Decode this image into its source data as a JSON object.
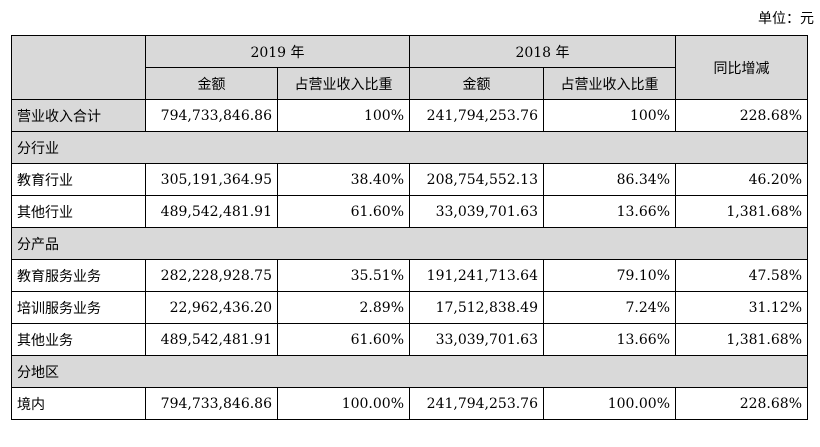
{
  "unit_label": "单位：元",
  "header": {
    "year1": "2019 年",
    "year2": "2018 年",
    "yoy": "同比增减",
    "amount": "金额",
    "share": "占营业收入比重"
  },
  "total": {
    "label": "营业收入合计",
    "a1": "794,733,846.86",
    "s1": "100%",
    "a2": "241,794,253.76",
    "s2": "100%",
    "yoy": "228.68%"
  },
  "sections": [
    {
      "title": "分行业",
      "rows": [
        {
          "label": "教育行业",
          "a1": "305,191,364.95",
          "s1": "38.40%",
          "a2": "208,754,552.13",
          "s2": "86.34%",
          "yoy": "46.20%"
        },
        {
          "label": "其他行业",
          "a1": "489,542,481.91",
          "s1": "61.60%",
          "a2": "33,039,701.63",
          "s2": "13.66%",
          "yoy": "1,381.68%"
        }
      ]
    },
    {
      "title": "分产品",
      "rows": [
        {
          "label": "教育服务业务",
          "a1": "282,228,928.75",
          "s1": "35.51%",
          "a2": "191,241,713.64",
          "s2": "79.10%",
          "yoy": "47.58%"
        },
        {
          "label": "培训服务业务",
          "a1": "22,962,436.20",
          "s1": "2.89%",
          "a2": "17,512,838.49",
          "s2": "7.24%",
          "yoy": "31.12%"
        },
        {
          "label": "其他业务",
          "a1": "489,542,481.91",
          "s1": "61.60%",
          "a2": "33,039,701.63",
          "s2": "13.66%",
          "yoy": "1,381.68%"
        }
      ]
    },
    {
      "title": "分地区",
      "rows": [
        {
          "label": "境内",
          "a1": "794,733,846.86",
          "s1": "100.00%",
          "a2": "241,794,253.76",
          "s2": "100.00%",
          "yoy": "228.68%"
        }
      ]
    }
  ]
}
